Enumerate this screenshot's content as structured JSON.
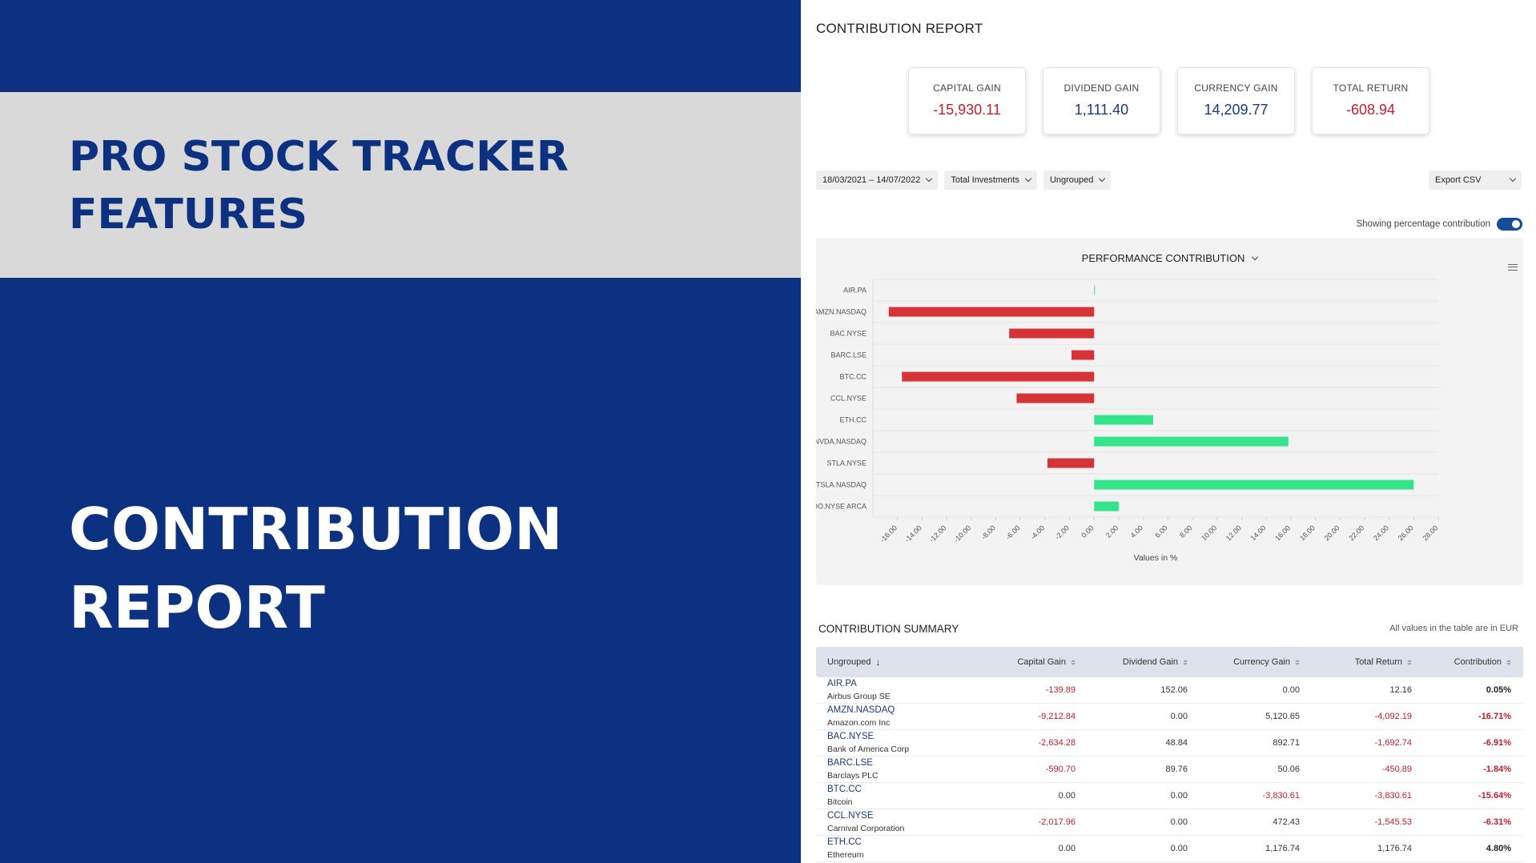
{
  "promo": {
    "line1": "PRO STOCK TRACKER",
    "line2": "FEATURES",
    "hero1": "CONTRIBUTION",
    "hero2": "REPORT"
  },
  "report_title": "CONTRIBUTION REPORT",
  "kpis": [
    {
      "label": "CAPITAL GAIN",
      "value": "-15,930.11",
      "tone": "neg"
    },
    {
      "label": "DIVIDEND GAIN",
      "value": "1,111.40",
      "tone": "pos"
    },
    {
      "label": "CURRENCY GAIN",
      "value": "14,209.77",
      "tone": "pos"
    },
    {
      "label": "TOTAL RETURN",
      "value": "-608.94",
      "tone": "neg"
    }
  ],
  "filters": {
    "date_range": "18/03/2021  –  14/07/2022",
    "investments": "Total Investments",
    "grouping": "Ungrouped",
    "export": "Export CSV"
  },
  "toggle_label": "Showing percentage contribution",
  "chart_title": "PERFORMANCE CONTRIBUTION",
  "chart_data": {
    "type": "bar",
    "orientation": "horizontal",
    "categories": [
      "AIR.PA",
      "AMZN.NASDAQ",
      "BAC.NYSE",
      "BARC.LSE",
      "BTC.CC",
      "CCL.NYSE",
      "ETH.CC",
      "NVDA.NASDAQ",
      "STLA.NYSE",
      "TSLA.NASDAQ",
      "VOO.NYSE ARCA"
    ],
    "values": [
      0.05,
      -16.71,
      -6.91,
      -1.84,
      -15.64,
      -6.31,
      4.8,
      15.8,
      -3.8,
      26.0,
      2.0
    ],
    "xlabel": "Values in %",
    "xlim": [
      -18,
      28
    ],
    "ticks": [
      "-16.00",
      "-14.00",
      "-12.00",
      "-10.00",
      "-8.00",
      "-6.00",
      "-4.00",
      "-2.00",
      "0.00",
      "2.00",
      "4.00",
      "6.00",
      "8.00",
      "10.00",
      "12.00",
      "14.00",
      "16.00",
      "18.00",
      "20.00",
      "22.00",
      "24.00",
      "26.00",
      "28.00"
    ],
    "tick_values": [
      -16,
      -14,
      -12,
      -10,
      -8,
      -6,
      -4,
      -2,
      0,
      2,
      4,
      6,
      8,
      10,
      12,
      14,
      16,
      18,
      20,
      22,
      24,
      26,
      28
    ],
    "colors": {
      "positive": "#34e38a",
      "negative": "#d43438"
    },
    "grid": true
  },
  "summary": {
    "title": "CONTRIBUTION SUMMARY",
    "note": "All values in the table are in EUR",
    "columns": [
      "Ungrouped",
      "Capital Gain",
      "Dividend Gain",
      "Currency Gain",
      "Total Return",
      "Contribution"
    ],
    "rows": [
      {
        "symbol": "AIR.PA",
        "name": "Airbus Group SE",
        "capital": "-139.89",
        "dividend": "152.06",
        "currency": "0.00",
        "total": "12.16",
        "contribution": "0.05%"
      },
      {
        "symbol": "AMZN.NASDAQ",
        "name": "Amazon.com Inc",
        "capital": "-9,212.84",
        "dividend": "0.00",
        "currency": "5,120.65",
        "total": "-4,092.19",
        "contribution": "-16.71%"
      },
      {
        "symbol": "BAC.NYSE",
        "name": "Bank of America Corp",
        "capital": "-2,634.28",
        "dividend": "48.84",
        "currency": "892.71",
        "total": "-1,692.74",
        "contribution": "-6.91%"
      },
      {
        "symbol": "BARC.LSE",
        "name": "Barclays PLC",
        "capital": "-590.70",
        "dividend": "89.76",
        "currency": "50.06",
        "total": "-450.89",
        "contribution": "-1.84%"
      },
      {
        "symbol": "BTC.CC",
        "name": "Bitcoin",
        "capital": "0.00",
        "dividend": "0.00",
        "currency": "-3,830.61",
        "total": "-3,830.61",
        "contribution": "-15.64%"
      },
      {
        "symbol": "CCL.NYSE",
        "name": "Carnival Corporation",
        "capital": "-2,017.96",
        "dividend": "0.00",
        "currency": "472.43",
        "total": "-1,545.53",
        "contribution": "-6.31%"
      },
      {
        "symbol": "ETH.CC",
        "name": "Ethereum",
        "capital": "0.00",
        "dividend": "0.00",
        "currency": "1,176.74",
        "total": "1,176.74",
        "contribution": "4.80%"
      }
    ]
  }
}
